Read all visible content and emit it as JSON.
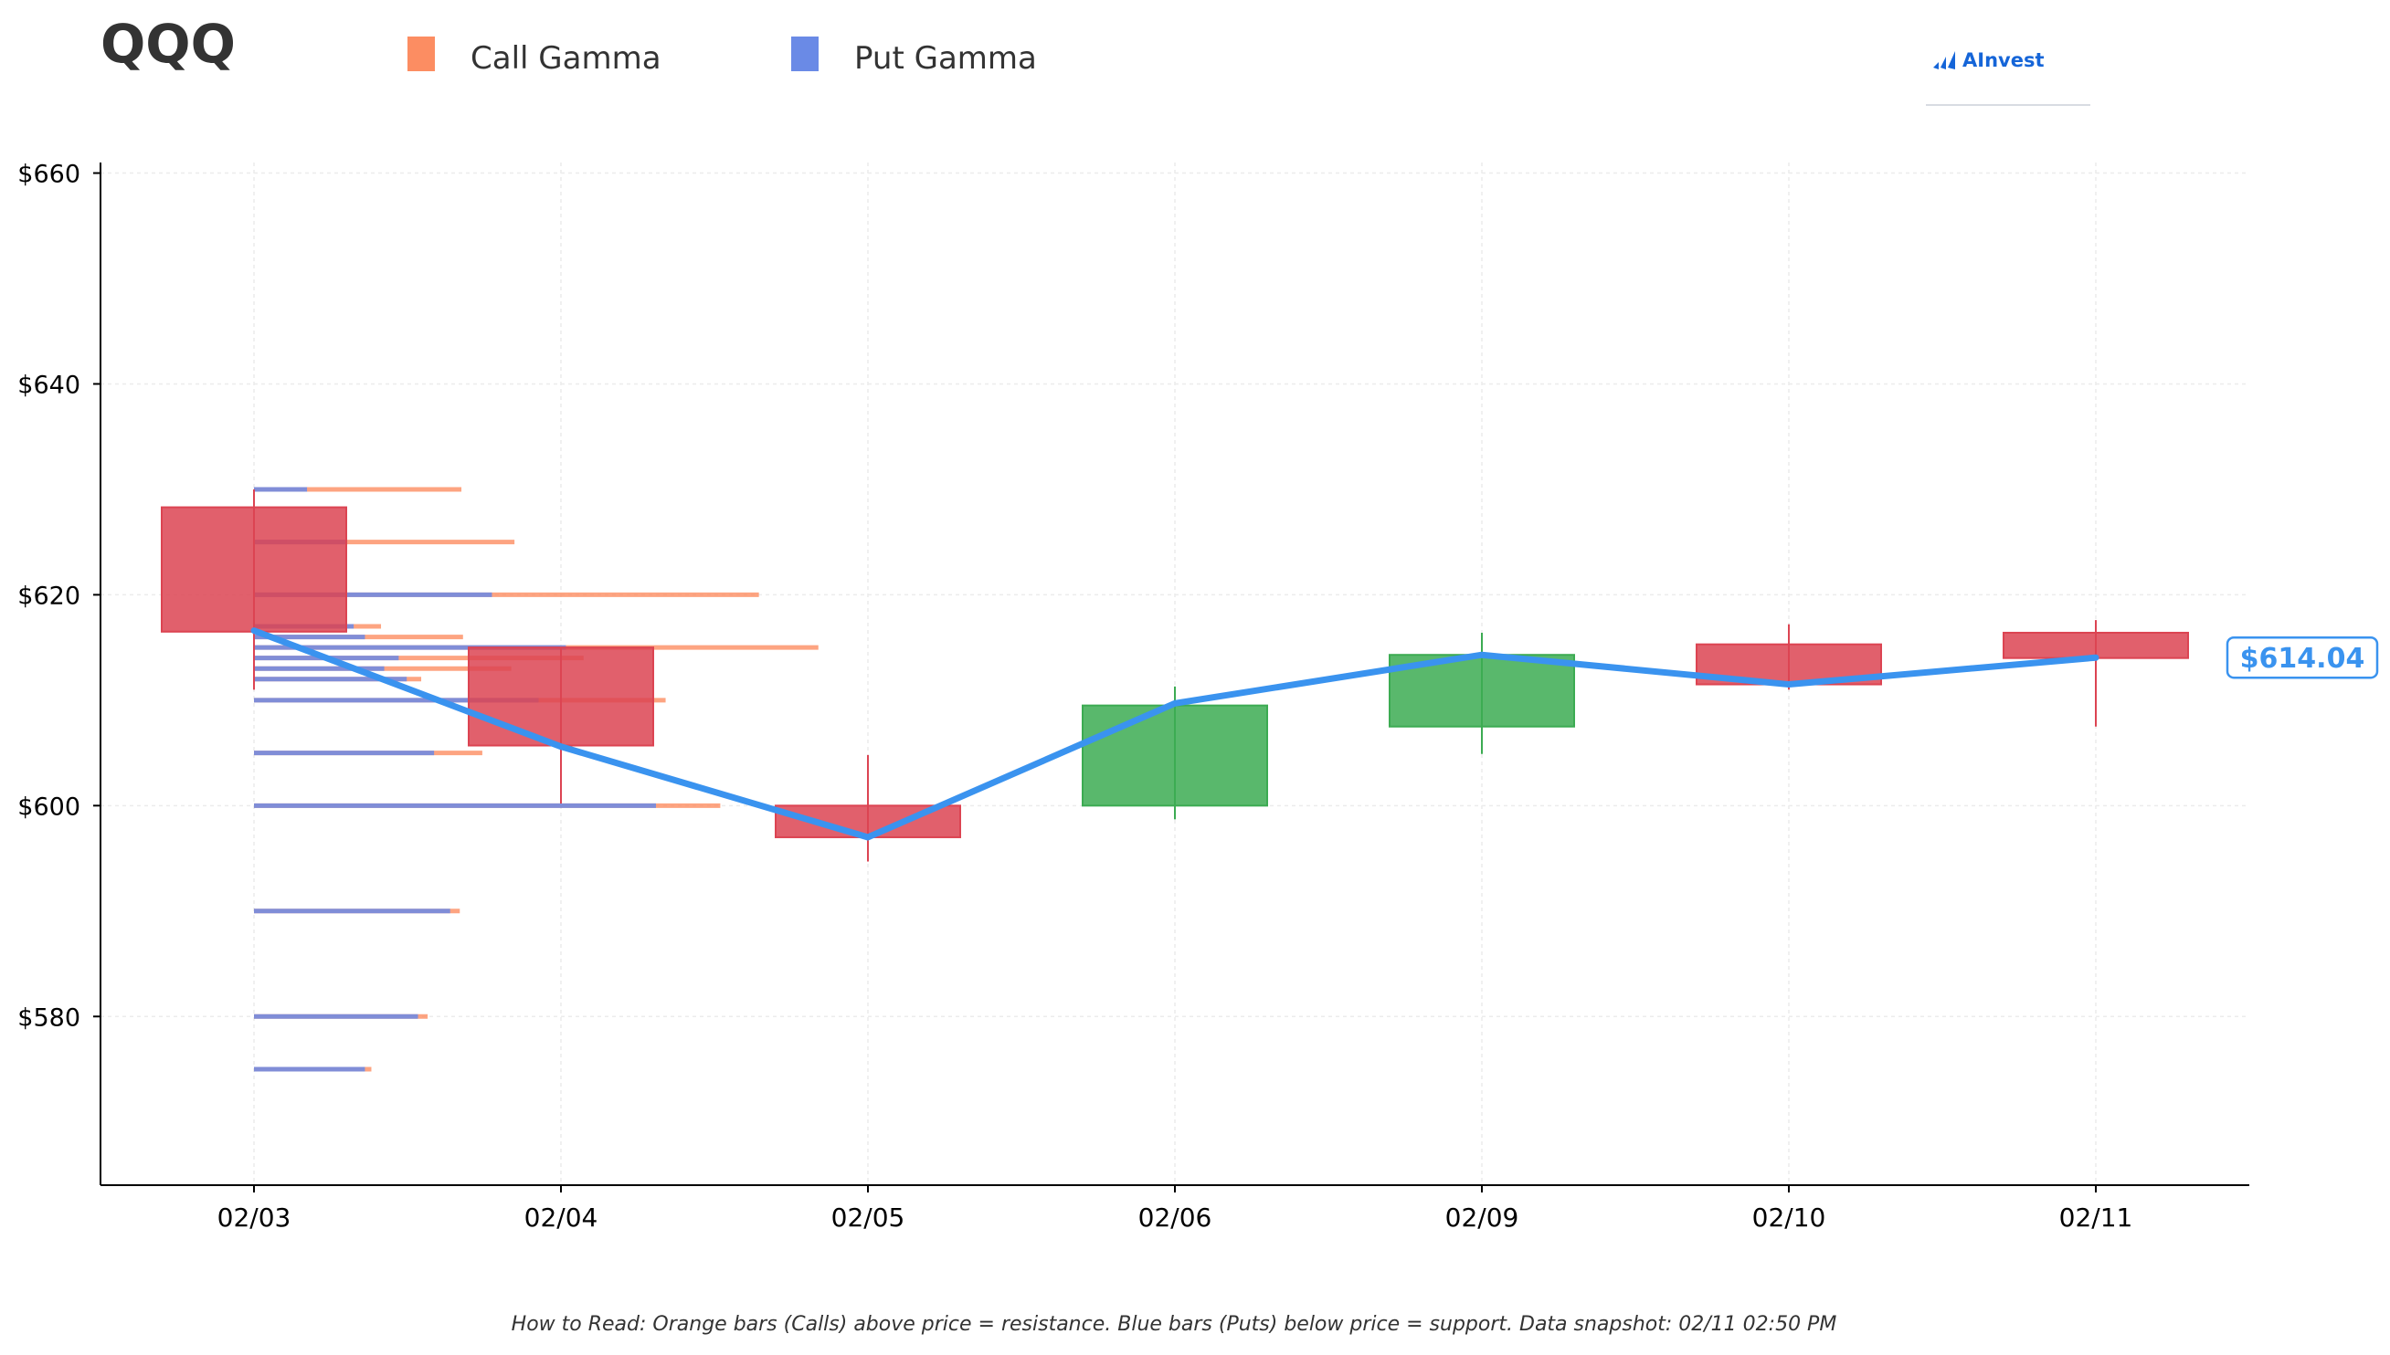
{
  "header": {
    "ticker": "QQQ",
    "logo_text": "AInvest"
  },
  "legend": [
    {
      "label": "Call Gamma",
      "color": "#fc8d62"
    },
    {
      "label": "Put Gamma",
      "color": "#6a8ae6"
    }
  ],
  "footnote": "How to Read: Orange bars (Calls) above price = resistance. Blue bars (Puts) below price = support. Data snapshot: 02/11 02:50 PM",
  "colors": {
    "up": "#3cab52",
    "down": "#dc4452",
    "price_line": "#3a93ef",
    "call": "#fc8d62",
    "put": "#6a8ae6"
  },
  "chart_data": {
    "type": "candlestick",
    "categories": [
      "02/03",
      "02/04",
      "02/05",
      "02/06",
      "02/09",
      "02/10",
      "02/11"
    ],
    "y_tick_labels": [
      "$580",
      "$600",
      "$620",
      "$640",
      "$660"
    ],
    "y_ticks": [
      580,
      600,
      620,
      640,
      660
    ],
    "ylim": [
      564,
      661
    ],
    "grid": true,
    "candles": [
      {
        "date": "02/03",
        "open": 628.3,
        "high": 630.0,
        "low": 611.0,
        "close": 616.5
      },
      {
        "date": "02/04",
        "open": 615.0,
        "high": 615.0,
        "low": 600.2,
        "close": 605.7
      },
      {
        "date": "02/05",
        "open": 600.0,
        "high": 604.8,
        "low": 594.7,
        "close": 597.0
      },
      {
        "date": "02/06",
        "open": 600.0,
        "high": 611.3,
        "low": 598.7,
        "close": 609.5
      },
      {
        "date": "02/09",
        "open": 607.5,
        "high": 616.4,
        "low": 604.9,
        "close": 614.3
      },
      {
        "date": "02/10",
        "open": 615.3,
        "high": 617.2,
        "low": 611.0,
        "close": 611.5
      },
      {
        "date": "02/11",
        "open": 616.4,
        "high": 617.6,
        "low": 607.5,
        "close": 614.0
      }
    ],
    "price_line": {
      "values": [
        616.6,
        605.6,
        597.0,
        609.7,
        614.3,
        611.5,
        614.04
      ],
      "last_label": "$614.04"
    },
    "gamma_levels": [
      {
        "strike": 630,
        "put": 0.33,
        "call": 1.29
      },
      {
        "strike": 625,
        "put": 0.58,
        "call": 1.62
      },
      {
        "strike": 620,
        "put": 1.48,
        "call": 3.14
      },
      {
        "strike": 617,
        "put": 0.62,
        "call": 0.79
      },
      {
        "strike": 616,
        "put": 0.69,
        "call": 1.3
      },
      {
        "strike": 615,
        "put": 1.94,
        "call": 3.51
      },
      {
        "strike": 614,
        "put": 0.9,
        "call": 2.05
      },
      {
        "strike": 613,
        "put": 0.81,
        "call": 1.6
      },
      {
        "strike": 612,
        "put": 0.95,
        "call": 1.04
      },
      {
        "strike": 610,
        "put": 1.77,
        "call": 2.56
      },
      {
        "strike": 605,
        "put": 1.12,
        "call": 1.42
      },
      {
        "strike": 600,
        "put": 2.5,
        "call": 2.9
      },
      {
        "strike": 590,
        "put": 1.22,
        "call": 1.28
      },
      {
        "strike": 580,
        "put": 1.02,
        "call": 1.08
      },
      {
        "strike": 575,
        "put": 0.69,
        "call": 0.73
      }
    ]
  }
}
